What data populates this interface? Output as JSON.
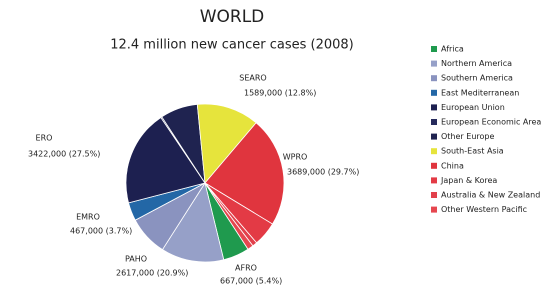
{
  "chart_data": {
    "type": "pie",
    "title": "WORLD",
    "subtitle": "12.4 million new cancer cases (2008)",
    "categories": [
      "Africa",
      "Northern America",
      "Southern America",
      "East Mediterranean",
      "European Union",
      "European Economic Area",
      "Other Europe",
      "South-East Asia",
      "China",
      "Japan & Korea",
      "Australia & New Zealand",
      "Other Western Pacific"
    ],
    "values": [
      667000,
      1600000,
      1017000,
      467000,
      2440000,
      30000,
      952000,
      1589000,
      2800000,
      620000,
      120000,
      149000
    ],
    "colors": [
      "#1f9a4e",
      "#96a0c8",
      "#8a93bf",
      "#2367a6",
      "#1d2050",
      "#262a5c",
      "#1f2350",
      "#e6e43c",
      "#e0353e",
      "#e33a45",
      "#e2404b",
      "#e6474f"
    ],
    "annotations": [
      {
        "text": "AFRO",
        "label": "667,000 (5.4%)"
      },
      {
        "text": "PAHO",
        "label": "2617,000 (20.9%)"
      },
      {
        "text": "EMRO",
        "label": "467,000 (3.7%)"
      },
      {
        "text": "ERO",
        "label": "3422,000 (27.5%)"
      },
      {
        "text": "SEARO",
        "label": "1589,000 (12.8%)"
      },
      {
        "text": "WPRO",
        "label": "3689,000 (29.7%)"
      }
    ]
  }
}
